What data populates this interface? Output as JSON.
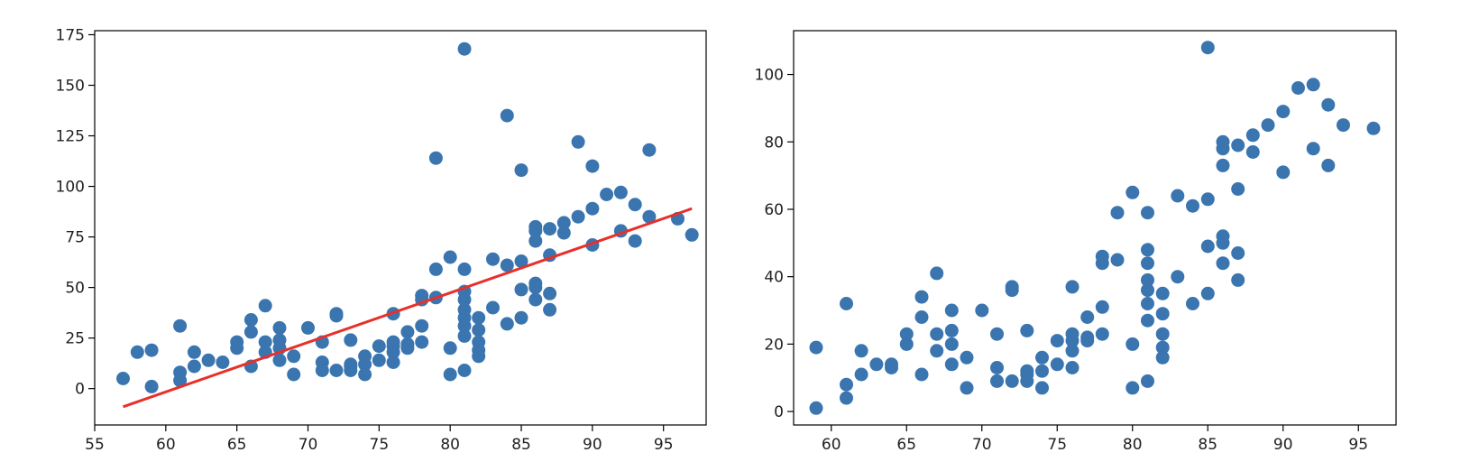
{
  "chart_data": [
    {
      "type": "scatter",
      "xlim": [
        55,
        98
      ],
      "ylim": [
        -18,
        177
      ],
      "xticks": [
        55,
        60,
        65,
        70,
        75,
        80,
        85,
        90,
        95
      ],
      "yticks": [
        0,
        25,
        50,
        75,
        100,
        125,
        150,
        175
      ],
      "grid": false,
      "point_color": "#3a75b0",
      "series": [
        {
          "type": "scatter",
          "points": [
            [
              57,
              5
            ],
            [
              58,
              18
            ],
            [
              59,
              19
            ],
            [
              59,
              1
            ],
            [
              61,
              31
            ],
            [
              61,
              8
            ],
            [
              61,
              4
            ],
            [
              62,
              18
            ],
            [
              62,
              11
            ],
            [
              63,
              14
            ],
            [
              64,
              13
            ],
            [
              65,
              23
            ],
            [
              65,
              20
            ],
            [
              66,
              34
            ],
            [
              66,
              28
            ],
            [
              66,
              11
            ],
            [
              67,
              41
            ],
            [
              67,
              23
            ],
            [
              67,
              18
            ],
            [
              68,
              30
            ],
            [
              68,
              24
            ],
            [
              68,
              20
            ],
            [
              68,
              14
            ],
            [
              69,
              16
            ],
            [
              69,
              7
            ],
            [
              70,
              30
            ],
            [
              71,
              23
            ],
            [
              71,
              13
            ],
            [
              71,
              9
            ],
            [
              72,
              37
            ],
            [
              72,
              36
            ],
            [
              72,
              9
            ],
            [
              73,
              24
            ],
            [
              73,
              12
            ],
            [
              73,
              11
            ],
            [
              73,
              9
            ],
            [
              74,
              16
            ],
            [
              74,
              12
            ],
            [
              74,
              7
            ],
            [
              75,
              21
            ],
            [
              75,
              14
            ],
            [
              76,
              37
            ],
            [
              76,
              23
            ],
            [
              76,
              21
            ],
            [
              76,
              18
            ],
            [
              76,
              13
            ],
            [
              77,
              28
            ],
            [
              77,
              22
            ],
            [
              77,
              20
            ],
            [
              78,
              46
            ],
            [
              78,
              44
            ],
            [
              78,
              31
            ],
            [
              78,
              23
            ],
            [
              79,
              114
            ],
            [
              79,
              59
            ],
            [
              79,
              45
            ],
            [
              80,
              65
            ],
            [
              80,
              20
            ],
            [
              80,
              7
            ],
            [
              81,
              168
            ],
            [
              81,
              59
            ],
            [
              81,
              48
            ],
            [
              81,
              44
            ],
            [
              81,
              39
            ],
            [
              81,
              35
            ],
            [
              81,
              31
            ],
            [
              81,
              26
            ],
            [
              81,
              9
            ],
            [
              82,
              35
            ],
            [
              82,
              29
            ],
            [
              82,
              23
            ],
            [
              82,
              19
            ],
            [
              82,
              16
            ],
            [
              83,
              64
            ],
            [
              83,
              40
            ],
            [
              84,
              135
            ],
            [
              84,
              61
            ],
            [
              84,
              32
            ],
            [
              85,
              108
            ],
            [
              85,
              63
            ],
            [
              85,
              49
            ],
            [
              85,
              35
            ],
            [
              86,
              80
            ],
            [
              86,
              78
            ],
            [
              86,
              73
            ],
            [
              86,
              52
            ],
            [
              86,
              50
            ],
            [
              86,
              44
            ],
            [
              87,
              79
            ],
            [
              87,
              66
            ],
            [
              87,
              47
            ],
            [
              87,
              39
            ],
            [
              88,
              82
            ],
            [
              88,
              77
            ],
            [
              89,
              122
            ],
            [
              89,
              85
            ],
            [
              90,
              110
            ],
            [
              90,
              89
            ],
            [
              90,
              71
            ],
            [
              91,
              96
            ],
            [
              92,
              97
            ],
            [
              92,
              78
            ],
            [
              93,
              91
            ],
            [
              93,
              73
            ],
            [
              94,
              118
            ],
            [
              94,
              85
            ],
            [
              96,
              84
            ],
            [
              97,
              76
            ]
          ]
        },
        {
          "type": "line",
          "color": "#e8302a",
          "points": [
            [
              57,
              -9
            ],
            [
              97,
              89
            ]
          ]
        }
      ]
    },
    {
      "type": "scatter",
      "xlim": [
        57.5,
        97.5
      ],
      "ylim": [
        -4,
        113
      ],
      "xticks": [
        60,
        65,
        70,
        75,
        80,
        85,
        90,
        95
      ],
      "yticks": [
        0,
        20,
        40,
        60,
        80,
        100
      ],
      "grid": false,
      "point_color": "#3a75b0",
      "series": [
        {
          "type": "scatter",
          "points": [
            [
              59,
              19
            ],
            [
              59,
              1
            ],
            [
              61,
              32
            ],
            [
              61,
              8
            ],
            [
              61,
              4
            ],
            [
              62,
              18
            ],
            [
              62,
              11
            ],
            [
              63,
              14
            ],
            [
              64,
              14
            ],
            [
              64,
              13
            ],
            [
              65,
              23
            ],
            [
              65,
              20
            ],
            [
              66,
              34
            ],
            [
              66,
              28
            ],
            [
              66,
              11
            ],
            [
              67,
              41
            ],
            [
              67,
              23
            ],
            [
              67,
              18
            ],
            [
              68,
              30
            ],
            [
              68,
              24
            ],
            [
              68,
              20
            ],
            [
              68,
              14
            ],
            [
              69,
              16
            ],
            [
              69,
              7
            ],
            [
              70,
              30
            ],
            [
              71,
              23
            ],
            [
              71,
              13
            ],
            [
              71,
              9
            ],
            [
              72,
              37
            ],
            [
              72,
              36
            ],
            [
              72,
              9
            ],
            [
              73,
              24
            ],
            [
              73,
              12
            ],
            [
              73,
              11
            ],
            [
              73,
              9
            ],
            [
              74,
              16
            ],
            [
              74,
              12
            ],
            [
              74,
              7
            ],
            [
              75,
              21
            ],
            [
              75,
              14
            ],
            [
              76,
              37
            ],
            [
              76,
              23
            ],
            [
              76,
              21
            ],
            [
              76,
              18
            ],
            [
              76,
              13
            ],
            [
              77,
              28
            ],
            [
              77,
              22
            ],
            [
              77,
              21
            ],
            [
              78,
              46
            ],
            [
              78,
              44
            ],
            [
              78,
              31
            ],
            [
              78,
              23
            ],
            [
              79,
              59
            ],
            [
              79,
              45
            ],
            [
              80,
              65
            ],
            [
              80,
              20
            ],
            [
              80,
              7
            ],
            [
              81,
              59
            ],
            [
              81,
              48
            ],
            [
              81,
              44
            ],
            [
              81,
              39
            ],
            [
              81,
              36
            ],
            [
              81,
              32
            ],
            [
              81,
              27
            ],
            [
              81,
              9
            ],
            [
              82,
              35
            ],
            [
              82,
              29
            ],
            [
              82,
              23
            ],
            [
              82,
              19
            ],
            [
              82,
              16
            ],
            [
              83,
              64
            ],
            [
              83,
              40
            ],
            [
              84,
              61
            ],
            [
              84,
              32
            ],
            [
              85,
              108
            ],
            [
              85,
              63
            ],
            [
              85,
              49
            ],
            [
              85,
              35
            ],
            [
              86,
              80
            ],
            [
              86,
              78
            ],
            [
              86,
              73
            ],
            [
              86,
              52
            ],
            [
              86,
              50
            ],
            [
              86,
              44
            ],
            [
              87,
              79
            ],
            [
              87,
              66
            ],
            [
              87,
              47
            ],
            [
              87,
              39
            ],
            [
              88,
              82
            ],
            [
              88,
              77
            ],
            [
              89,
              85
            ],
            [
              90,
              89
            ],
            [
              90,
              71
            ],
            [
              91,
              96
            ],
            [
              92,
              97
            ],
            [
              92,
              78
            ],
            [
              93,
              91
            ],
            [
              93,
              73
            ],
            [
              94,
              85
            ],
            [
              96,
              84
            ]
          ]
        }
      ]
    }
  ]
}
